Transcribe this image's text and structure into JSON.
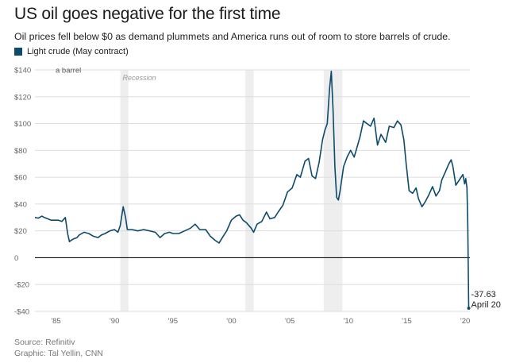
{
  "header": {
    "title": "US oil goes negative for the first time",
    "subtitle": "Oil prices fell below $0 as demand plummets and America runs out of room to store barrels of crude."
  },
  "footer": {
    "source": "Source: Refinitiv",
    "credit": "Graphic: Tal Yellin, CNN"
  },
  "chart_data": {
    "type": "line",
    "title": "US oil goes negative for the first time",
    "subtitle": "Oil prices fell below $0 as demand plummets and America runs out of room to store barrels of crude.",
    "ylabel": "a barrel",
    "ylim": [
      -40,
      140
    ],
    "xlim": [
      1983.2,
      2020.4
    ],
    "y_ticks": [
      -40,
      -20,
      0,
      20,
      40,
      60,
      80,
      100,
      120,
      140
    ],
    "y_tick_labels": [
      "-$40",
      "-$20",
      "0",
      "$20",
      "$40",
      "$60",
      "$80",
      "$100",
      "$120",
      "$140"
    ],
    "x_ticks": [
      1985,
      1990,
      1995,
      2000,
      2005,
      2010,
      2015,
      2020
    ],
    "x_tick_labels": [
      "'85",
      "'90",
      "'95",
      "'00",
      "'05",
      "'10",
      "'15",
      "'20"
    ],
    "grid": true,
    "legend_position": "top-left",
    "colors": {
      "line": "#0d4a6b",
      "grid": "#dddddd",
      "zero": "#111111",
      "recession": "#eeeeee"
    },
    "recessions": [
      {
        "start": 1990.5,
        "end": 1991.2,
        "label": "Recession"
      },
      {
        "start": 2001.2,
        "end": 2001.9,
        "label": ""
      },
      {
        "start": 2007.9,
        "end": 2009.5,
        "label": ""
      }
    ],
    "annotation": {
      "value_label": "-37.63",
      "date_label": "April 20",
      "x": 2020.3,
      "y": -37.63
    },
    "series": [
      {
        "name": "Light crude (May contract)",
        "x": [
          1983.2,
          1983.5,
          1983.8,
          1984.0,
          1984.3,
          1984.6,
          1984.9,
          1985.2,
          1985.5,
          1985.8,
          1986.0,
          1986.15,
          1986.3,
          1986.5,
          1986.8,
          1987.0,
          1987.4,
          1987.8,
          1988.2,
          1988.6,
          1988.9,
          1989.2,
          1989.6,
          1990.0,
          1990.3,
          1990.5,
          1990.75,
          1990.95,
          1991.1,
          1991.5,
          1992.0,
          1992.5,
          1993.0,
          1993.5,
          1993.9,
          1994.3,
          1994.7,
          1995.0,
          1995.5,
          1996.0,
          1996.5,
          1996.9,
          1997.3,
          1997.8,
          1998.2,
          1998.6,
          1998.95,
          1999.3,
          1999.6,
          2000.0,
          2000.4,
          2000.7,
          2001.0,
          2001.3,
          2001.7,
          2001.9,
          2002.2,
          2002.6,
          2003.0,
          2003.3,
          2003.7,
          2004.0,
          2004.4,
          2004.8,
          2005.2,
          2005.6,
          2005.9,
          2006.3,
          2006.6,
          2006.9,
          2007.2,
          2007.5,
          2007.8,
          2008.0,
          2008.2,
          2008.4,
          2008.55,
          2008.7,
          2008.85,
          2009.0,
          2009.15,
          2009.3,
          2009.6,
          2009.9,
          2010.2,
          2010.5,
          2010.8,
          2011.0,
          2011.3,
          2011.6,
          2011.9,
          2012.2,
          2012.5,
          2012.8,
          2013.2,
          2013.5,
          2013.9,
          2014.2,
          2014.5,
          2014.75,
          2014.95,
          2015.2,
          2015.5,
          2015.8,
          2016.0,
          2016.3,
          2016.6,
          2016.9,
          2017.2,
          2017.5,
          2017.8,
          2018.0,
          2018.3,
          2018.6,
          2018.8,
          2018.95,
          2019.2,
          2019.5,
          2019.8,
          2019.95,
          2020.05,
          2020.15,
          2020.22,
          2020.3
        ],
        "values": [
          30,
          29.5,
          31,
          30,
          29,
          28,
          28,
          28,
          27,
          30,
          18,
          12,
          13,
          14,
          15,
          17,
          19,
          18,
          16,
          15,
          17,
          18,
          20,
          21,
          19,
          24,
          38,
          30,
          21,
          21,
          20,
          21,
          20,
          19,
          15,
          18,
          19,
          18,
          18,
          20,
          22,
          25,
          21,
          21,
          16,
          13,
          11,
          16,
          20,
          28,
          31,
          32,
          28,
          26,
          22,
          19,
          25,
          27,
          34,
          29,
          30,
          34,
          39,
          49,
          52,
          62,
          60,
          72,
          74,
          61,
          59,
          71,
          88,
          95,
          100,
          126,
          139,
          110,
          68,
          45,
          43,
          50,
          68,
          75,
          80,
          75,
          84,
          90,
          102,
          100,
          98,
          104,
          84,
          92,
          86,
          98,
          97,
          102,
          99,
          88,
          70,
          50,
          48,
          52,
          44,
          38,
          42,
          47,
          53,
          46,
          50,
          58,
          64,
          70,
          73,
          68,
          54,
          58,
          62,
          55,
          59,
          52,
          25,
          -37.63
        ]
      }
    ]
  }
}
